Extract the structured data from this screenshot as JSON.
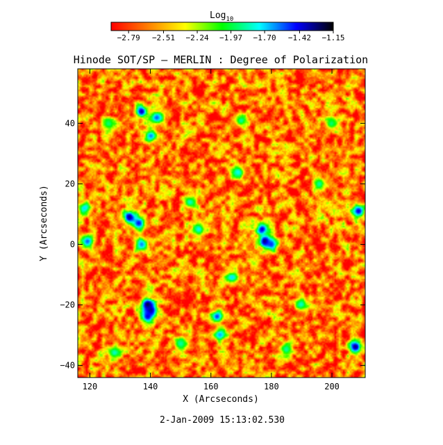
{
  "chart_data": {
    "type": "heatmap",
    "title": "Hinode SOT/SP – MERLIN : Degree of Polarization",
    "xlabel": "X (Arcseconds)",
    "ylabel": "Y (Arcseconds)",
    "xlim": [
      116,
      211
    ],
    "ylim": [
      -44,
      58
    ],
    "x_ticks": [
      120,
      140,
      160,
      180,
      200
    ],
    "y_ticks": [
      -40,
      -20,
      0,
      20,
      40
    ],
    "colorbar": {
      "label_base": "Log",
      "label_subscript": "10",
      "range": [
        -2.93,
        -1.15
      ],
      "ticks": [
        "-2.79",
        "-2.51",
        "-2.24",
        "-1.97",
        "-1.70",
        "-1.42",
        "-1.15"
      ],
      "tick_values": [
        -2.79,
        -2.51,
        -2.24,
        -1.97,
        -1.7,
        -1.42,
        -1.15
      ],
      "colors": [
        "#ff0000",
        "#ff7f00",
        "#ffff00",
        "#00ff00",
        "#00ffff",
        "#0000ff",
        "#000000"
      ]
    },
    "background_level": -2.65,
    "features": [
      {
        "x": 137,
        "y": 44,
        "level": -1.35
      },
      {
        "x": 142,
        "y": 42,
        "level": -1.55
      },
      {
        "x": 140,
        "y": 36,
        "level": -1.6
      },
      {
        "x": 126,
        "y": 40,
        "level": -1.9
      },
      {
        "x": 133,
        "y": 9,
        "level": -1.3
      },
      {
        "x": 136,
        "y": 7,
        "level": -1.45
      },
      {
        "x": 137,
        "y": 0,
        "level": -1.6
      },
      {
        "x": 118,
        "y": 12,
        "level": -1.7
      },
      {
        "x": 119,
        "y": 1,
        "level": -1.55
      },
      {
        "x": 139,
        "y": -20,
        "level": -1.2
      },
      {
        "x": 140,
        "y": -22,
        "level": -1.3
      },
      {
        "x": 139,
        "y": -24,
        "level": -1.4
      },
      {
        "x": 178,
        "y": 1,
        "level": -1.2
      },
      {
        "x": 177,
        "y": 5,
        "level": -1.4
      },
      {
        "x": 180,
        "y": 0,
        "level": -1.5
      },
      {
        "x": 162,
        "y": -24,
        "level": -1.5
      },
      {
        "x": 163,
        "y": -30,
        "level": -1.65
      },
      {
        "x": 167,
        "y": -11,
        "level": -1.7
      },
      {
        "x": 169,
        "y": 24,
        "level": -1.75
      },
      {
        "x": 153,
        "y": 14,
        "level": -1.8
      },
      {
        "x": 156,
        "y": 5,
        "level": -1.75
      },
      {
        "x": 208,
        "y": -34,
        "level": -1.3
      },
      {
        "x": 209,
        "y": 11,
        "level": -1.4
      },
      {
        "x": 190,
        "y": -20,
        "level": -1.8
      },
      {
        "x": 196,
        "y": 20,
        "level": -1.85
      },
      {
        "x": 128,
        "y": -36,
        "level": -1.8
      },
      {
        "x": 150,
        "y": -33,
        "level": -1.85
      },
      {
        "x": 185,
        "y": -35,
        "level": -1.85
      },
      {
        "x": 170,
        "y": 41,
        "level": -1.85
      },
      {
        "x": 200,
        "y": 40,
        "level": -1.9
      }
    ]
  },
  "footer": {
    "timestamp": "2-Jan-2009 15:13:02.530"
  }
}
